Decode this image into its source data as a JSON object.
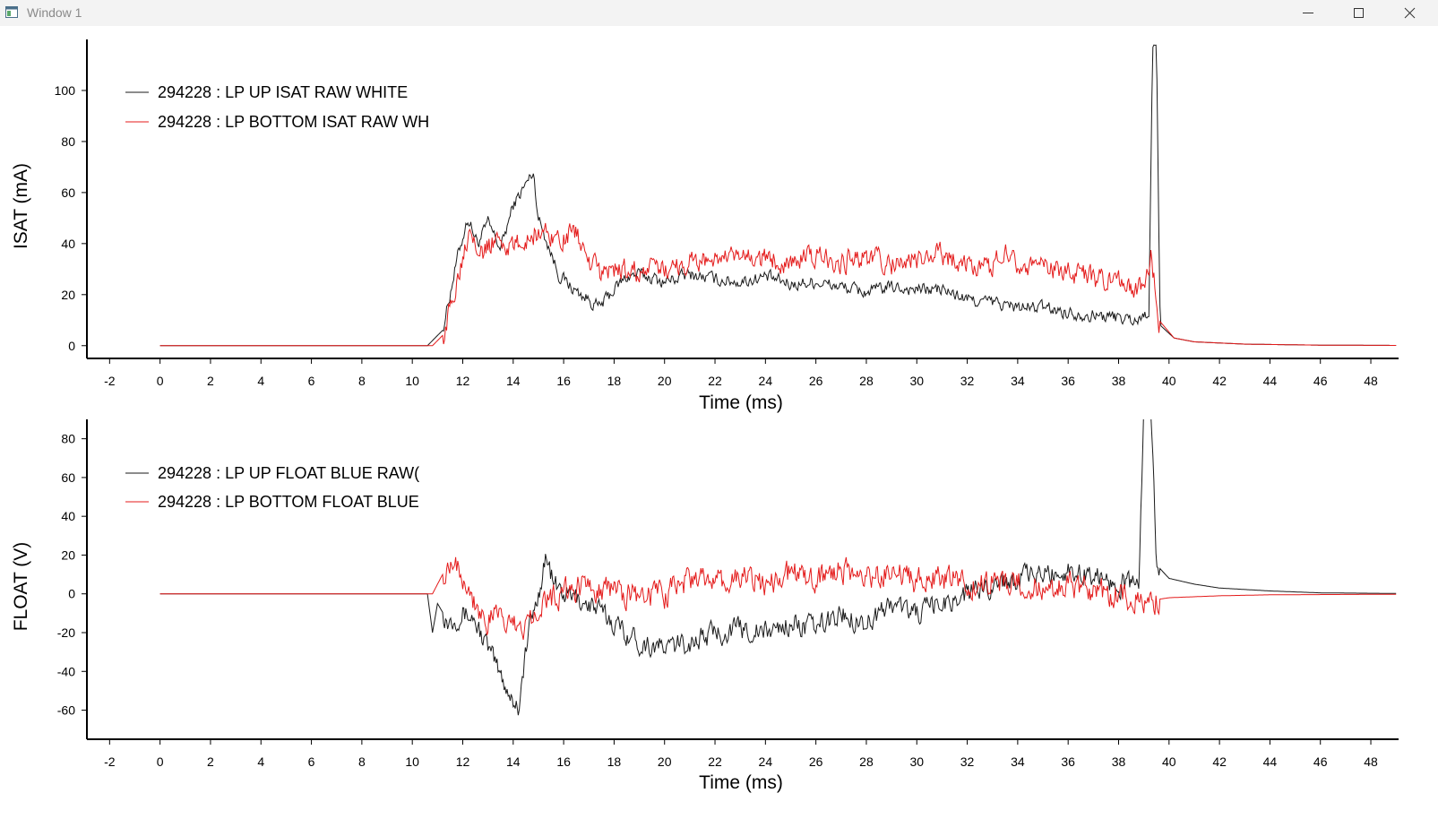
{
  "window": {
    "title": "Window 1",
    "icons": {
      "app": "app-window-icon",
      "minimize": "minimize-icon",
      "maximize": "maximize-icon",
      "close": "close-icon"
    }
  },
  "colors": {
    "series_up": "#1a1a1a",
    "series_bottom": "#e41b1b",
    "axis": "#000000",
    "titlebar": "#f3f3f3"
  },
  "chart_data": [
    {
      "type": "line",
      "xlabel": "Time (ms)",
      "ylabel": "ISAT (mA)",
      "xlim": [
        -2.9,
        49.1
      ],
      "ylim": [
        -5,
        120
      ],
      "xticks": [
        -2,
        0,
        2,
        4,
        6,
        8,
        10,
        12,
        14,
        16,
        18,
        20,
        22,
        24,
        26,
        28,
        30,
        32,
        34,
        36,
        38,
        40,
        42,
        44,
        46,
        48
      ],
      "yticks": [
        0,
        20,
        40,
        60,
        80,
        100
      ],
      "legend_placement": "top-left",
      "grid": false,
      "series": [
        {
          "name": "294228 : LP UP ISAT RAW WHITE",
          "color": "#1a1a1a",
          "points": [
            [
              0,
              0
            ],
            [
              10.6,
              0
            ],
            [
              11.2,
              6
            ],
            [
              11.8,
              35
            ],
            [
              12.2,
              50
            ],
            [
              12.6,
              40
            ],
            [
              13.0,
              48
            ],
            [
              13.5,
              38
            ],
            [
              14.0,
              55
            ],
            [
              14.3,
              60
            ],
            [
              14.8,
              68
            ],
            [
              15.0,
              50
            ],
            [
              15.3,
              42
            ],
            [
              15.8,
              28
            ],
            [
              16.4,
              22
            ],
            [
              17.0,
              18
            ],
            [
              17.4,
              15
            ],
            [
              18.0,
              22
            ],
            [
              18.5,
              27
            ],
            [
              19.0,
              28
            ],
            [
              20.0,
              25
            ],
            [
              21.0,
              28
            ],
            [
              22.0,
              26
            ],
            [
              23.0,
              25
            ],
            [
              24.0,
              27
            ],
            [
              25.0,
              24
            ],
            [
              26.0,
              25
            ],
            [
              27.0,
              23
            ],
            [
              28.0,
              21
            ],
            [
              29.0,
              23
            ],
            [
              30.0,
              22
            ],
            [
              31.0,
              22
            ],
            [
              32.0,
              18
            ],
            [
              33.0,
              17
            ],
            [
              34.0,
              15
            ],
            [
              35.0,
              15
            ],
            [
              36.0,
              13
            ],
            [
              37.0,
              12
            ],
            [
              38.0,
              11
            ],
            [
              38.8,
              10
            ],
            [
              39.2,
              14
            ],
            [
              39.35,
              117
            ],
            [
              39.5,
              117
            ],
            [
              39.65,
              8
            ],
            [
              40.2,
              3
            ],
            [
              41.0,
              1.5
            ],
            [
              43.0,
              0.6
            ],
            [
              46.0,
              0.2
            ],
            [
              49.0,
              0.1
            ]
          ],
          "noise_amplitude": 4
        },
        {
          "name": "294228 : LP BOTTOM ISAT RAW WH",
          "color": "#e41b1b",
          "points": [
            [
              0,
              0
            ],
            [
              10.8,
              0
            ],
            [
              11.3,
              5
            ],
            [
              11.9,
              32
            ],
            [
              12.3,
              48
            ],
            [
              12.8,
              36
            ],
            [
              13.3,
              42
            ],
            [
              14.0,
              38
            ],
            [
              15.0,
              45
            ],
            [
              16.0,
              42
            ],
            [
              16.5,
              45
            ],
            [
              17.0,
              32
            ],
            [
              17.5,
              28
            ],
            [
              18.0,
              30
            ],
            [
              19.0,
              29
            ],
            [
              20.0,
              30
            ],
            [
              21.0,
              33
            ],
            [
              22.0,
              34
            ],
            [
              23.0,
              34
            ],
            [
              24.0,
              34
            ],
            [
              25.0,
              33
            ],
            [
              26.0,
              35
            ],
            [
              27.0,
              33
            ],
            [
              28.0,
              35
            ],
            [
              29.0,
              32
            ],
            [
              30.0,
              33
            ],
            [
              31.0,
              36
            ],
            [
              32.0,
              32
            ],
            [
              33.0,
              30
            ],
            [
              33.5,
              40
            ],
            [
              34.0,
              32
            ],
            [
              35.0,
              30
            ],
            [
              36.0,
              29
            ],
            [
              37.0,
              26
            ],
            [
              38.0,
              24
            ],
            [
              39.0,
              22
            ],
            [
              39.3,
              35
            ],
            [
              39.6,
              10
            ],
            [
              40.2,
              3
            ],
            [
              41.0,
              1.5
            ],
            [
              43.0,
              0.6
            ],
            [
              46.0,
              0.2
            ],
            [
              49.0,
              0.1
            ]
          ],
          "noise_amplitude": 7
        }
      ]
    },
    {
      "type": "line",
      "xlabel": "Time (ms)",
      "ylabel": "FLOAT (V)",
      "xlim": [
        -2.9,
        49.1
      ],
      "ylim": [
        -75,
        90
      ],
      "xticks": [
        -2,
        0,
        2,
        4,
        6,
        8,
        10,
        12,
        14,
        16,
        18,
        20,
        22,
        24,
        26,
        28,
        30,
        32,
        34,
        36,
        38,
        40,
        42,
        44,
        46,
        48
      ],
      "yticks": [
        -60,
        -40,
        -20,
        0,
        20,
        40,
        60,
        80
      ],
      "legend_placement": "top-left",
      "grid": false,
      "series": [
        {
          "name": "294228 : LP UP FLOAT BLUE RAW(",
          "color": "#1a1a1a",
          "points": [
            [
              0,
              0
            ],
            [
              10.6,
              0
            ],
            [
              10.8,
              -20
            ],
            [
              11.0,
              -5
            ],
            [
              11.4,
              -14
            ],
            [
              12.0,
              -10
            ],
            [
              12.4,
              -12
            ],
            [
              13.0,
              -28
            ],
            [
              13.5,
              -42
            ],
            [
              14.0,
              -55
            ],
            [
              14.2,
              -58
            ],
            [
              14.4,
              -40
            ],
            [
              14.6,
              -20
            ],
            [
              15.0,
              0
            ],
            [
              15.3,
              20
            ],
            [
              15.6,
              5
            ],
            [
              16.0,
              0
            ],
            [
              17.0,
              -5
            ],
            [
              18.0,
              -15
            ],
            [
              19.0,
              -25
            ],
            [
              20.0,
              -28
            ],
            [
              21.0,
              -25
            ],
            [
              22.0,
              -20
            ],
            [
              23.0,
              -18
            ],
            [
              24.0,
              -20
            ],
            [
              25.0,
              -15
            ],
            [
              26.0,
              -18
            ],
            [
              27.0,
              -10
            ],
            [
              28.0,
              -15
            ],
            [
              29.0,
              -5
            ],
            [
              30.0,
              -10
            ],
            [
              31.0,
              -5
            ],
            [
              32.0,
              0
            ],
            [
              33.0,
              5
            ],
            [
              34.0,
              8
            ],
            [
              35.0,
              10
            ],
            [
              36.0,
              12
            ],
            [
              37.0,
              10
            ],
            [
              38.0,
              5
            ],
            [
              38.8,
              5
            ],
            [
              39.0,
              95
            ],
            [
              39.3,
              95
            ],
            [
              39.5,
              15
            ],
            [
              40.0,
              8
            ],
            [
              41.0,
              5
            ],
            [
              42.0,
              3
            ],
            [
              44.0,
              1.5
            ],
            [
              46.0,
              0.5
            ],
            [
              49.0,
              0.2
            ]
          ],
          "noise_amplitude": 9
        },
        {
          "name": "294228 : LP BOTTOM FLOAT BLUE",
          "color": "#e41b1b",
          "points": [
            [
              0,
              0
            ],
            [
              10.8,
              0
            ],
            [
              11.2,
              10
            ],
            [
              11.6,
              20
            ],
            [
              12.0,
              10
            ],
            [
              12.5,
              -5
            ],
            [
              13.0,
              -15
            ],
            [
              13.5,
              -10
            ],
            [
              14.0,
              -18
            ],
            [
              14.5,
              -15
            ],
            [
              15.0,
              -5
            ],
            [
              16.0,
              0
            ],
            [
              17.0,
              5
            ],
            [
              18.0,
              2
            ],
            [
              19.0,
              -2
            ],
            [
              20.0,
              0
            ],
            [
              21.0,
              8
            ],
            [
              22.0,
              5
            ],
            [
              23.0,
              8
            ],
            [
              24.0,
              6
            ],
            [
              25.0,
              10
            ],
            [
              26.0,
              8
            ],
            [
              27.0,
              12
            ],
            [
              28.0,
              8
            ],
            [
              29.0,
              10
            ],
            [
              30.0,
              6
            ],
            [
              31.0,
              8
            ],
            [
              32.0,
              5
            ],
            [
              33.0,
              6
            ],
            [
              34.0,
              5
            ],
            [
              35.0,
              2
            ],
            [
              36.0,
              3
            ],
            [
              37.0,
              2
            ],
            [
              38.0,
              0
            ],
            [
              39.0,
              -5
            ],
            [
              39.5,
              -3
            ],
            [
              40.0,
              -2
            ],
            [
              42.0,
              -1
            ],
            [
              44.0,
              -0.5
            ],
            [
              49.0,
              -0.2
            ]
          ],
          "noise_amplitude": 11
        }
      ]
    }
  ]
}
